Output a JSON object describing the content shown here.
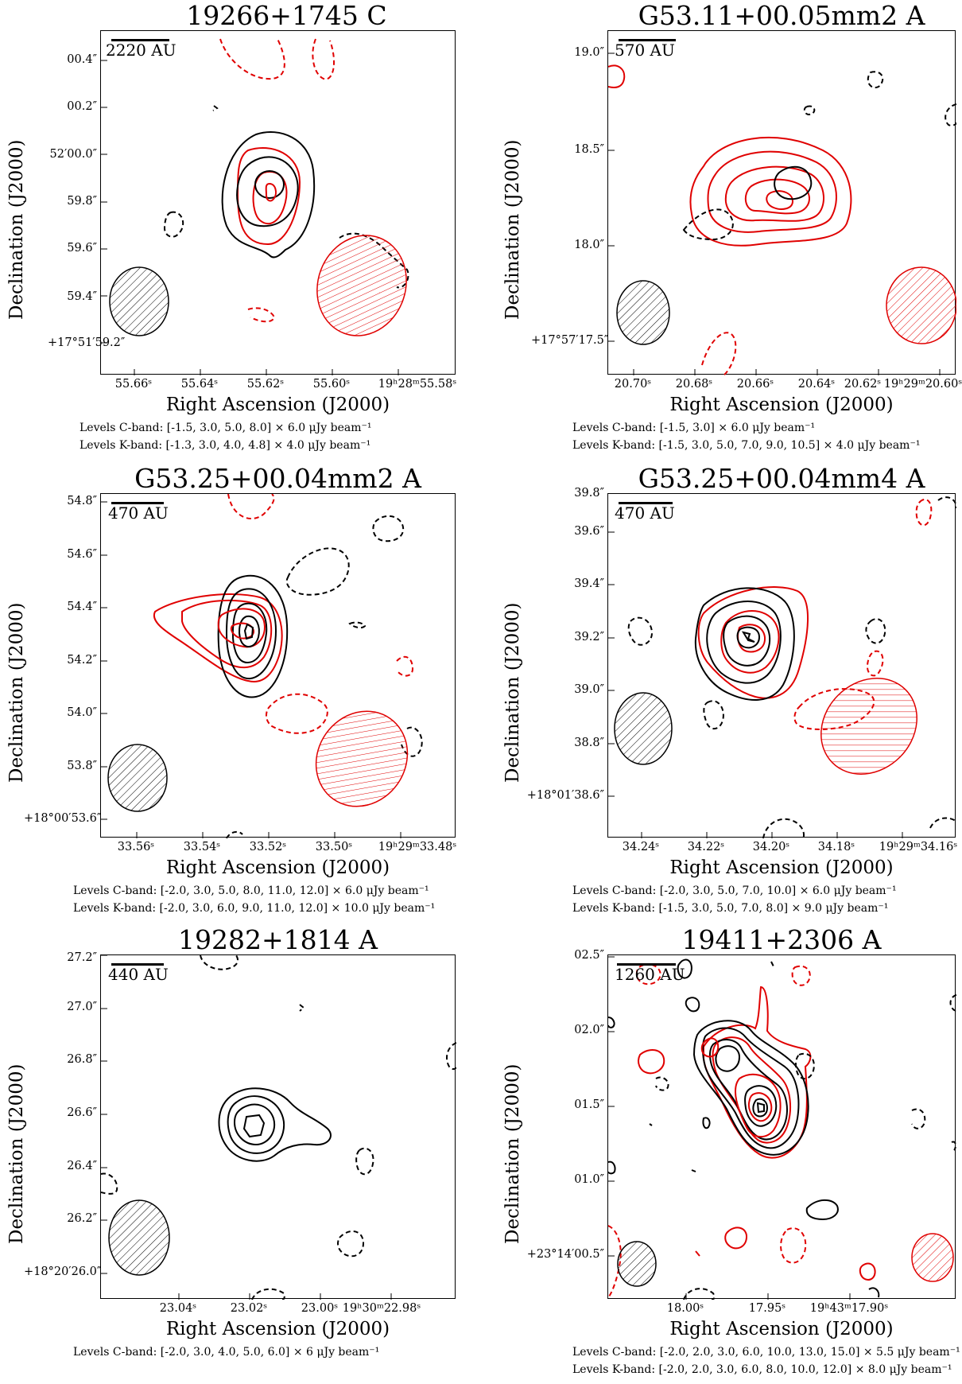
{
  "chart_data": [
    {
      "type": "contour",
      "title": "19266+1745 C",
      "xlabel": "Right Ascension (J2000)",
      "ylabel": "Declination (J2000)",
      "scalebar": "2220 AU",
      "xticks": [
        "55.66ˢ",
        "55.64ˢ",
        "55.62ˢ",
        "55.60ˢ",
        "19ʰ28ᵐ55.58ˢ"
      ],
      "yticks": [
        "+17°51′59.2″",
        "59.4″",
        "59.6″",
        "59.8″",
        "52′00.0″",
        "00.2″",
        "00.4″"
      ],
      "levels": [
        "Levels C-band: [-1.5, 3.0, 5.0, 8.0] × 6.0 μJy beam⁻¹",
        "Levels K-band: [-1.3, 3.0, 4.0, 4.8] × 4.0 μJy beam⁻¹"
      ],
      "c_band": {
        "levels": [
          -1.5,
          3.0,
          5.0,
          8.0
        ],
        "unit_uJy": 6.0
      },
      "k_band": {
        "levels": [
          -1.3,
          3.0,
          4.0,
          4.8
        ],
        "unit_uJy": 4.0
      },
      "colors": {
        "c_band": "#000000",
        "k_band": "#e00000"
      }
    },
    {
      "type": "contour",
      "title": "G53.11+00.05mm2 A",
      "xlabel": "Right Ascension (J2000)",
      "ylabel": "Declination (J2000)",
      "scalebar": "570 AU",
      "xticks": [
        "20.70ˢ",
        "20.68ˢ",
        "20.66ˢ",
        "20.64ˢ",
        "20.62ˢ",
        "19ʰ29ᵐ20.60ˢ"
      ],
      "yticks": [
        "+17°57′17.5″",
        "18.0″",
        "18.5″",
        "19.0″"
      ],
      "levels": [
        "Levels C-band: [-1.5, 3.0] × 6.0 μJy beam⁻¹",
        "Levels K-band: [-1.5, 3.0, 5.0, 7.0, 9.0, 10.5] × 4.0 μJy beam⁻¹"
      ],
      "c_band": {
        "levels": [
          -1.5,
          3.0
        ],
        "unit_uJy": 6.0
      },
      "k_band": {
        "levels": [
          -1.5,
          3.0,
          5.0,
          7.0,
          9.0,
          10.5
        ],
        "unit_uJy": 4.0
      }
    },
    {
      "type": "contour",
      "title": "G53.25+00.04mm2 A",
      "xlabel": "Right Ascension (J2000)",
      "ylabel": "Declination (J2000)",
      "scalebar": "470 AU",
      "xticks": [
        "33.56ˢ",
        "33.54ˢ",
        "33.52ˢ",
        "33.50ˢ",
        "19ʰ29ᵐ33.48ˢ"
      ],
      "yticks": [
        "+18°00′53.6″",
        "53.8″",
        "54.0″",
        "54.2″",
        "54.4″",
        "54.6″",
        "54.8″"
      ],
      "levels": [
        "Levels C-band: [-2.0, 3.0, 5.0, 8.0, 11.0, 12.0] × 6.0 μJy beam⁻¹",
        "Levels K-band: [-2.0, 3.0, 6.0, 9.0, 11.0, 12.0] × 10.0 μJy beam⁻¹"
      ],
      "c_band": {
        "levels": [
          -2.0,
          3.0,
          5.0,
          8.0,
          11.0,
          12.0
        ],
        "unit_uJy": 6.0
      },
      "k_band": {
        "levels": [
          -2.0,
          3.0,
          6.0,
          9.0,
          11.0,
          12.0
        ],
        "unit_uJy": 10.0
      }
    },
    {
      "type": "contour",
      "title": "G53.25+00.04mm4 A",
      "xlabel": "Right Ascension (J2000)",
      "ylabel": "Declination (J2000)",
      "scalebar": "470 AU",
      "xticks": [
        "34.24ˢ",
        "34.22ˢ",
        "34.20ˢ",
        "34.18ˢ",
        "19ʰ29ᵐ34.16ˢ"
      ],
      "yticks": [
        "+18°01′38.6″",
        "38.8″",
        "39.0″",
        "39.2″",
        "39.4″",
        "39.6″",
        "39.8″"
      ],
      "levels": [
        "Levels C-band: [-2.0, 3.0, 5.0, 7.0, 10.0] × 6.0 μJy beam⁻¹",
        "Levels K-band: [-1.5, 3.0, 5.0, 7.0, 8.0] × 9.0 μJy beam⁻¹"
      ],
      "c_band": {
        "levels": [
          -2.0,
          3.0,
          5.0,
          7.0,
          10.0
        ],
        "unit_uJy": 6.0
      },
      "k_band": {
        "levels": [
          -1.5,
          3.0,
          5.0,
          7.0,
          8.0
        ],
        "unit_uJy": 9.0
      }
    },
    {
      "type": "contour",
      "title": "19282+1814 A",
      "xlabel": "Right Ascension (J2000)",
      "ylabel": "Declination (J2000)",
      "scalebar": "440 AU",
      "xticks": [
        "23.04ˢ",
        "23.02ˢ",
        "23.00ˢ",
        "19ʰ30ᵐ22.98ˢ"
      ],
      "yticks": [
        "+18°20′26.0″",
        "26.2″",
        "26.4″",
        "26.6″",
        "26.8″",
        "27.0″",
        "27.2″"
      ],
      "levels": [
        "Levels C-band: [-2.0, 3.0, 4.0, 5.0, 6.0] × 6 μJy beam⁻¹"
      ],
      "c_band": {
        "levels": [
          -2.0,
          3.0,
          4.0,
          5.0,
          6.0
        ],
        "unit_uJy": 6
      }
    },
    {
      "type": "contour",
      "title": "19411+2306 A",
      "xlabel": "Right Ascension (J2000)",
      "ylabel": "Declination (J2000)",
      "scalebar": "1260 AU",
      "xticks": [
        "18.00ˢ",
        "17.95ˢ",
        "19ʰ43ᵐ17.90ˢ"
      ],
      "yticks": [
        "+23°14′00.5″",
        "01.0″",
        "01.5″",
        "02.0″",
        "02.5″"
      ],
      "levels": [
        "Levels C-band: [-2.0, 2.0, 3.0, 6.0, 10.0, 13.0, 15.0] × 5.5 μJy beam⁻¹",
        "Levels K-band: [-2.0, 2.0, 3.0, 6.0, 8.0, 10.0, 12.0] × 8.0 μJy beam⁻¹"
      ],
      "c_band": {
        "levels": [
          -2.0,
          2.0,
          3.0,
          6.0,
          10.0,
          13.0,
          15.0
        ],
        "unit_uJy": 5.5
      },
      "k_band": {
        "levels": [
          -2.0,
          2.0,
          3.0,
          6.0,
          8.0,
          10.0,
          12.0
        ],
        "unit_uJy": 8.0
      }
    }
  ]
}
